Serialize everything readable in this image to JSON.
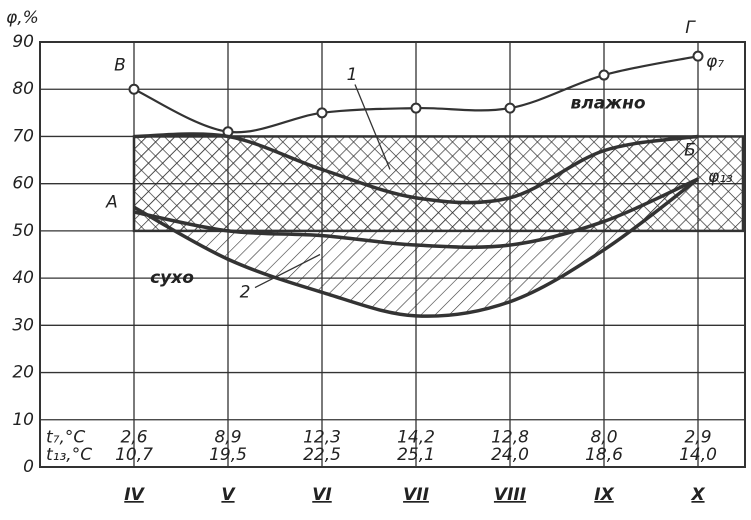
{
  "chart_data": {
    "type": "line",
    "y_label": "φ,%",
    "categories": [
      "IV",
      "V",
      "VI",
      "VII",
      "VIII",
      "IX",
      "X"
    ],
    "series": [
      {
        "name": "φ₇",
        "color": "#333",
        "values": [
          80,
          71,
          75,
          76,
          76,
          83,
          87
        ]
      },
      {
        "name": "1",
        "color": "#333",
        "values": [
          70,
          70,
          63,
          57,
          57,
          67,
          70
        ]
      },
      {
        "name": "φ₁₃",
        "color": "#333",
        "values": [
          54,
          50,
          49,
          47,
          47,
          52,
          61
        ]
      },
      {
        "name": "2",
        "color": "#333",
        "values": [
          55,
          44,
          37,
          32,
          35,
          46,
          61
        ]
      }
    ],
    "zone": [
      50,
      70
    ],
    "annotations": [
      "В",
      "Г",
      "А",
      "Б",
      "влажно",
      "сухо"
    ],
    "table": {
      "row_labels": [
        "t₇,°C",
        "t₁₃,°C"
      ],
      "rows": [
        [
          "2,6",
          "8,9",
          "12,3",
          "14,2",
          "12,8",
          "8,0",
          "2,9"
        ],
        [
          "10,7",
          "19,5",
          "22,5",
          "25,1",
          "24,0",
          "18,6",
          "14,0"
        ]
      ]
    },
    "ylim": [
      0,
      90
    ],
    "yticks": [
      0,
      10,
      20,
      30,
      40,
      50,
      60,
      70,
      80,
      90
    ],
    "grid": true
  }
}
